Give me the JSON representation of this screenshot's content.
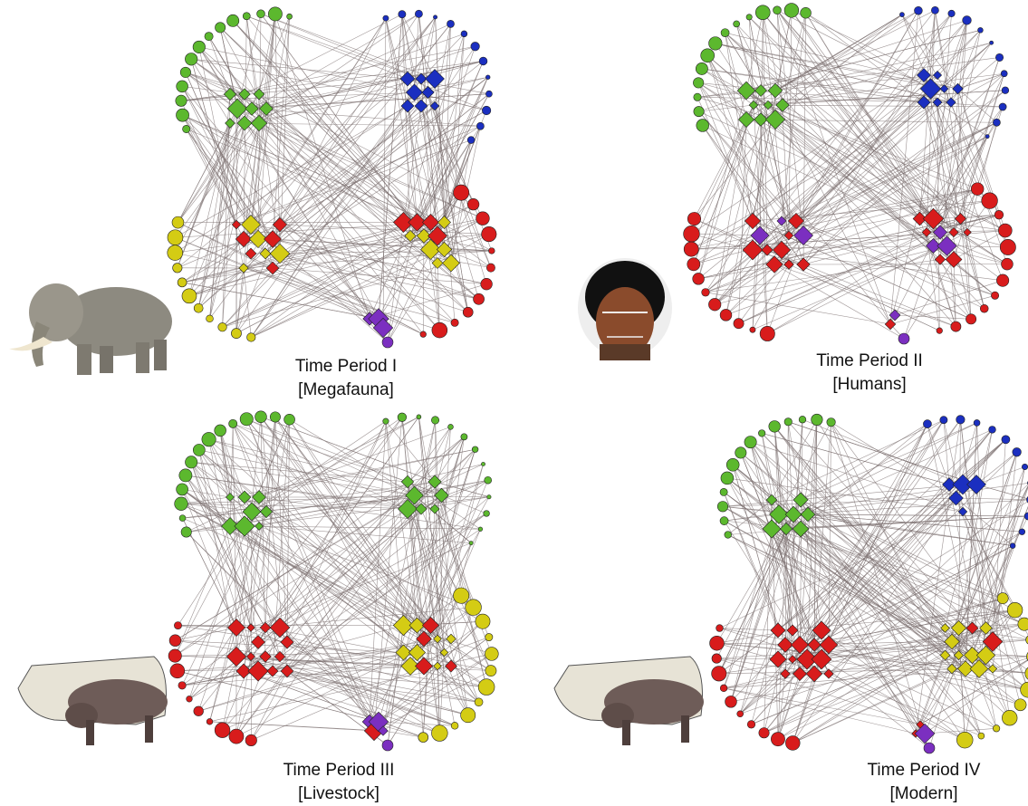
{
  "panels": [
    {
      "title": "Time Period I",
      "subtitle": "[Megafauna]"
    },
    {
      "title": "Time Period II",
      "subtitle": "[Humans]"
    },
    {
      "title": "Time Period III",
      "subtitle": "[Livestock]"
    },
    {
      "title": "Time Period IV",
      "subtitle": "[Modern]"
    }
  ]
}
